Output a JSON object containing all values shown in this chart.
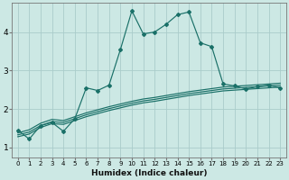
{
  "title": "",
  "xlabel": "Humidex (Indice chaleur)",
  "bg_color": "#cce8e4",
  "grid_color": "#aaccca",
  "line_color": "#1a7068",
  "xlim": [
    -0.5,
    23.5
  ],
  "ylim": [
    0.75,
    4.75
  ],
  "yticks": [
    1,
    2,
    3,
    4
  ],
  "xticks": [
    0,
    1,
    2,
    3,
    4,
    5,
    6,
    7,
    8,
    9,
    10,
    11,
    12,
    13,
    14,
    15,
    16,
    17,
    18,
    19,
    20,
    21,
    22,
    23
  ],
  "main_line_x": [
    0,
    1,
    2,
    3,
    4,
    5,
    6,
    7,
    8,
    9,
    10,
    11,
    12,
    13,
    14,
    15,
    16,
    17,
    18,
    19,
    20,
    21,
    22,
    23
  ],
  "main_line_y": [
    1.45,
    1.22,
    1.57,
    1.65,
    1.42,
    1.75,
    2.55,
    2.48,
    2.62,
    3.55,
    4.55,
    3.95,
    4.0,
    4.2,
    4.45,
    4.52,
    3.72,
    3.62,
    2.65,
    2.6,
    2.52,
    2.58,
    2.62,
    2.55
  ],
  "band_line1": [
    1.28,
    1.35,
    1.52,
    1.62,
    1.6,
    1.7,
    1.8,
    1.88,
    1.96,
    2.03,
    2.1,
    2.16,
    2.2,
    2.25,
    2.3,
    2.35,
    2.39,
    2.43,
    2.47,
    2.49,
    2.51,
    2.53,
    2.55,
    2.57
  ],
  "band_line2": [
    1.33,
    1.4,
    1.57,
    1.67,
    1.65,
    1.75,
    1.85,
    1.93,
    2.01,
    2.08,
    2.15,
    2.21,
    2.25,
    2.3,
    2.35,
    2.4,
    2.44,
    2.48,
    2.52,
    2.54,
    2.56,
    2.58,
    2.6,
    2.62
  ],
  "band_line3": [
    1.38,
    1.46,
    1.63,
    1.73,
    1.7,
    1.8,
    1.9,
    1.98,
    2.06,
    2.13,
    2.2,
    2.26,
    2.3,
    2.35,
    2.4,
    2.45,
    2.49,
    2.53,
    2.57,
    2.59,
    2.61,
    2.63,
    2.65,
    2.67
  ]
}
